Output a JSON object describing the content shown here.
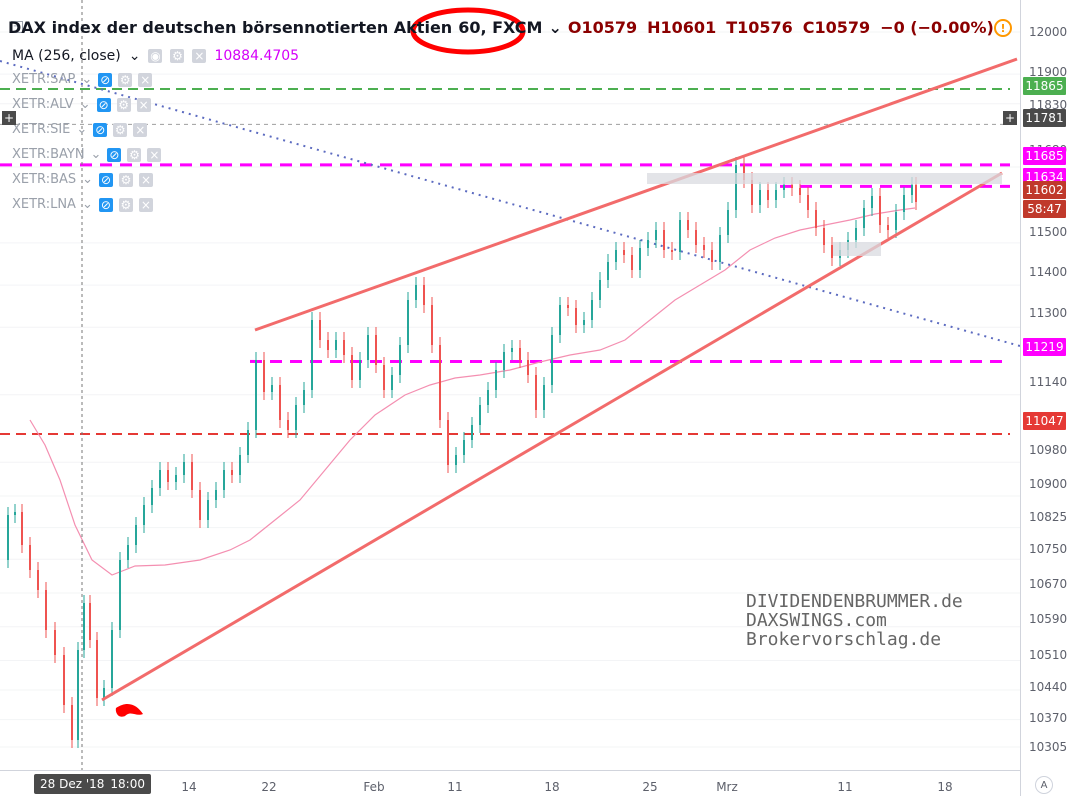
{
  "header": {
    "title": "DAX index der deutschen börsennotierten Aktien",
    "interval_source": "60, FXCM",
    "ohlc": [
      "O10579",
      "H10601",
      "T10576",
      "C10579",
      "−0 (−0.00%)"
    ]
  },
  "indicator": {
    "label": "MA (256, close)",
    "value": "10884.4705"
  },
  "compare_symbols": [
    "XETR:SAP",
    "XETR:ALV",
    "XETR:SIE",
    "XETR:BAYN",
    "XETR:BAS",
    "XETR:LNA"
  ],
  "watermark": [
    "DIVIDENDENBRUMMER.de",
    "DAXSWINGS.com",
    "Brokervorschlag.de"
  ],
  "time_axis": {
    "labels": [
      "14",
      "22",
      "Feb",
      "11",
      "18",
      "25",
      "Mrz",
      "11",
      "18"
    ],
    "cursor_date": "28 Dez '18",
    "cursor_time": "18:00"
  },
  "price_axis": {
    "ticks": [
      "12000",
      "11900",
      "11830",
      "11680",
      "11500",
      "11400",
      "11300",
      "11140",
      "10980",
      "10900",
      "10825",
      "10750",
      "10670",
      "10590",
      "10510",
      "10440",
      "10370",
      "10305"
    ],
    "labels": [
      {
        "text": "11865",
        "bg": "#4caf50"
      },
      {
        "text": "11781",
        "bg": "#4a4a4a"
      },
      {
        "text": "11685",
        "bg": "#ff00ff"
      },
      {
        "text": "11634",
        "bg": "#ff00ff"
      },
      {
        "text": "11602",
        "bg": "#c0392b"
      },
      {
        "text": "58:47",
        "bg": "#c0392b"
      },
      {
        "text": "11219",
        "bg": "#ff00ff"
      },
      {
        "text": "11047",
        "bg": "#e53935"
      }
    ]
  },
  "chart_data": {
    "type": "candlestick",
    "symbol": "DAX index der deutschen börsennotierten Aktien",
    "interval": "60",
    "source": "FXCM",
    "ohlc_last": {
      "open": 10579,
      "high": 10601,
      "low": 10576,
      "close": 10579,
      "change": "−0 (−0.00%)"
    },
    "indicator": {
      "name": "MA (256, close)",
      "value": 10884.4705
    },
    "horizontal_levels": [
      11865,
      11781,
      11685,
      11634,
      11602,
      11219,
      11047
    ],
    "x_axis_labels": [
      "14",
      "22",
      "Feb",
      "11",
      "18",
      "25",
      "Mrz",
      "11",
      "18"
    ],
    "y_axis_labels": [
      12000,
      11900,
      11830,
      11680,
      11500,
      11400,
      11300,
      11140,
      10980,
      10900,
      10825,
      10750,
      10670,
      10590,
      10510,
      10440,
      10370,
      10305
    ],
    "ylim": [
      10305,
      12000
    ],
    "colors": {
      "up": "#26a69a",
      "down": "#ef5350",
      "wedge": "#f26b6b",
      "magenta": "#ff00ff",
      "green": "#4caf50",
      "red": "#e53935",
      "ma": "#f48fb1",
      "trend_blue": "#5c6bc0"
    }
  }
}
